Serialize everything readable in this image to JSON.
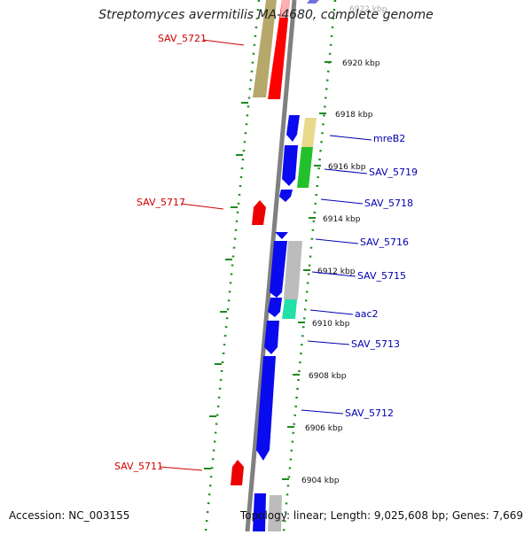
{
  "title": "Streptomyces avermitilis MA-4680, complete genome",
  "accession": "Accession: NC_003155",
  "summary": "Topology: linear; Length: 9,025,608 bp; Genes: 7,669",
  "kbp_labels": [
    "6922 kbp",
    "6920 kbp",
    "6918 kbp",
    "6916 kbp",
    "6914 kbp",
    "6912 kbp",
    "6910 kbp",
    "6908 kbp",
    "6906 kbp",
    "6904 kbp"
  ],
  "genes_left": [
    "SAV_5721",
    "SAV_5717",
    "SAV_5711"
  ],
  "genes_right": [
    "mreB2",
    "SAV_5719",
    "SAV_5718",
    "SAV_5716",
    "SAV_5715",
    "aac2",
    "SAV_5713",
    "SAV_5712"
  ],
  "colors": {
    "forward": "#d00000",
    "reverse": "#0000b0",
    "gene_blue": "#0a0aee",
    "backbone": "#808080"
  }
}
